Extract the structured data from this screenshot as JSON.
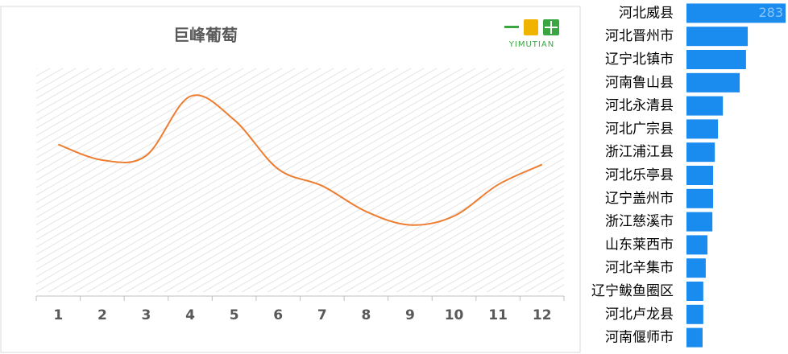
{
  "chart_data": [
    {
      "type": "line",
      "title": "巨峰葡萄",
      "logo": "YIMUTIAN",
      "categories": [
        "1",
        "2",
        "3",
        "4",
        "5",
        "6",
        "7",
        "8",
        "9",
        "10",
        "11",
        "12"
      ],
      "values": [
        66,
        59,
        61,
        87.5,
        77,
        55,
        47.5,
        36,
        30,
        34,
        48,
        57
      ],
      "color": "#ed7d31",
      "ylim": [
        0,
        100
      ]
    },
    {
      "type": "hbar",
      "categories": [
        "河北威县",
        "河北晋州市",
        "辽宁北镇市",
        "河南鲁山县",
        "河北永清县",
        "河北广宗县",
        "浙江浦江县",
        "河北乐亭县",
        "辽宁盖州市",
        "浙江慈溪市",
        "山东莱西市",
        "河北辛集市",
        "辽宁鲅鱼圈区",
        "河北卢龙县",
        "河南偃师市"
      ],
      "values": [
        283,
        175,
        170,
        152,
        104,
        90,
        81,
        76,
        76,
        74,
        60,
        55,
        48,
        48,
        46
      ],
      "color": "#1a8cf0",
      "xlim": [
        0,
        283
      ],
      "data_labels": "first"
    }
  ]
}
